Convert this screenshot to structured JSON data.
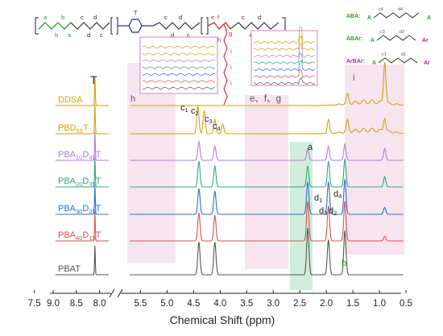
{
  "chart_data": {
    "type": "line",
    "xlabel": "Chemical Shift (ppm)",
    "ylabel": "",
    "xlim": [
      9.0,
      0.5
    ],
    "x_axis_break": [
      8.0,
      5.75
    ],
    "x_ticks": [
      "9.0",
      "8.5",
      "8.0",
      "7.5",
      "5.5",
      "5.0",
      "4.5",
      "4.0",
      "3.5",
      "3.0",
      "2.5",
      "2.0",
      "1.5",
      "1.0",
      "0.5"
    ],
    "grid": false,
    "legend": "none",
    "series": [
      {
        "name": "DDSA",
        "color": "#d4a10f",
        "peaks": [
          {
            "x": 8.1,
            "y": 0.62
          },
          {
            "x": 1.6,
            "y": 0.2
          },
          {
            "x": 0.9,
            "y": 0.9
          }
        ]
      },
      {
        "name": "PBD55T",
        "label": {
          "main": "PBD",
          "sub": "55",
          "suffix": "T"
        },
        "color": "#d4a10f",
        "peaks": [
          {
            "x": 8.1,
            "y": 0.62
          },
          {
            "x": 4.42,
            "y": 0.6
          },
          {
            "x": 4.3,
            "y": 0.5
          },
          {
            "x": 4.1,
            "y": 0.3
          },
          {
            "x": 3.95,
            "y": 0.2
          },
          {
            "x": 1.96,
            "y": 0.3
          },
          {
            "x": 1.6,
            "y": 0.25
          },
          {
            "x": 0.9,
            "y": 0.3
          }
        ]
      },
      {
        "name": "PBA10D45T",
        "label": {
          "main": "PBA",
          "sub1": "10",
          "mid": "D",
          "sub2": "45",
          "suffix": "T"
        },
        "color": "#b57bd8",
        "peaks": [
          {
            "x": 8.1,
            "y": 0.6
          },
          {
            "x": 4.4,
            "y": 0.4
          },
          {
            "x": 4.1,
            "y": 0.3
          },
          {
            "x": 2.35,
            "y": 0.25
          },
          {
            "x": 1.96,
            "y": 0.3
          },
          {
            "x": 1.65,
            "y": 0.35
          },
          {
            "x": 0.9,
            "y": 0.25
          }
        ]
      },
      {
        "name": "PBA20D35T",
        "label": {
          "main": "PBA",
          "sub1": "20",
          "mid": "D",
          "sub2": "35",
          "suffix": "T"
        },
        "color": "#33a77a",
        "peaks": [
          {
            "x": 8.1,
            "y": 0.6
          },
          {
            "x": 4.4,
            "y": 0.55
          },
          {
            "x": 4.1,
            "y": 0.45
          },
          {
            "x": 2.35,
            "y": 0.45
          },
          {
            "x": 1.96,
            "y": 0.55
          },
          {
            "x": 1.65,
            "y": 0.6
          },
          {
            "x": 0.9,
            "y": 0.22
          }
        ]
      },
      {
        "name": "PBA30D25T",
        "label": {
          "main": "PBA",
          "sub1": "30",
          "mid": "D",
          "sub2": "25",
          "suffix": "T"
        },
        "color": "#2b6fd1",
        "peaks": [
          {
            "x": 8.1,
            "y": 0.6
          },
          {
            "x": 4.4,
            "y": 0.55
          },
          {
            "x": 4.1,
            "y": 0.5
          },
          {
            "x": 2.35,
            "y": 0.7
          },
          {
            "x": 1.96,
            "y": 0.7
          },
          {
            "x": 1.65,
            "y": 0.75
          },
          {
            "x": 0.9,
            "y": 0.15
          }
        ]
      },
      {
        "name": "PBA40D15T",
        "label": {
          "main": "PBA",
          "sub1": "40",
          "mid": "D",
          "sub2": "15",
          "suffix": "T"
        },
        "color": "#d9534f",
        "peaks": [
          {
            "x": 8.1,
            "y": 0.6
          },
          {
            "x": 4.4,
            "y": 0.6
          },
          {
            "x": 4.1,
            "y": 0.55
          },
          {
            "x": 2.35,
            "y": 0.85
          },
          {
            "x": 1.96,
            "y": 0.75
          },
          {
            "x": 1.65,
            "y": 0.85
          },
          {
            "x": 0.9,
            "y": 0.1
          }
        ]
      },
      {
        "name": "PBAT",
        "color": "#555555",
        "peaks": [
          {
            "x": 8.1,
            "y": 0.62
          },
          {
            "x": 4.4,
            "y": 0.7
          },
          {
            "x": 4.1,
            "y": 0.7
          },
          {
            "x": 2.35,
            "y": 1.0
          },
          {
            "x": 1.96,
            "y": 0.75
          },
          {
            "x": 1.65,
            "y": 0.95
          }
        ]
      }
    ],
    "annotations": {
      "T": "T",
      "a": "a",
      "b": "b",
      "c1": {
        "main": "c",
        "sub": "1"
      },
      "c2": {
        "main": "c",
        "sub": "2"
      },
      "c3": {
        "main": "c",
        "sub": "3"
      },
      "c4": {
        "main": "c",
        "sub": "4"
      },
      "d1": {
        "main": "d",
        "sub": "1"
      },
      "d2": {
        "main": "d",
        "sub": "2"
      },
      "d3": {
        "main": "d",
        "sub": "3"
      },
      "d4": {
        "main": "d",
        "sub": "4"
      },
      "h": "h",
      "efg": "e、f、g",
      "i": "i"
    },
    "structure_labels": {
      "a": "a",
      "b": "b",
      "c": "c",
      "d": "d",
      "T": "T",
      "e": "e",
      "f": "f",
      "g": "g",
      "h": "h",
      "i": "i",
      "x": "x",
      "ABA": "ABA:",
      "ABAr": "ABAr:",
      "ArBAr": "ArBAr:",
      "A": "A",
      "Ar": "Ar",
      "c1": "c1",
      "d1": "d1",
      "c2": "c2",
      "d2": "d2",
      "c3": "c3",
      "d3": "d3",
      "c4": "c4",
      "d4": "d4"
    },
    "colors": {
      "shade_pink": "#e9c5dc",
      "shade_green": "#b8e3c5",
      "inset_frame": "#c887c8",
      "mono_green": "#2e9b2e",
      "mono_purple": "#a32ba3",
      "mono_blue": "#1f2fa3",
      "mono_red": "#cc2a2a"
    }
  }
}
